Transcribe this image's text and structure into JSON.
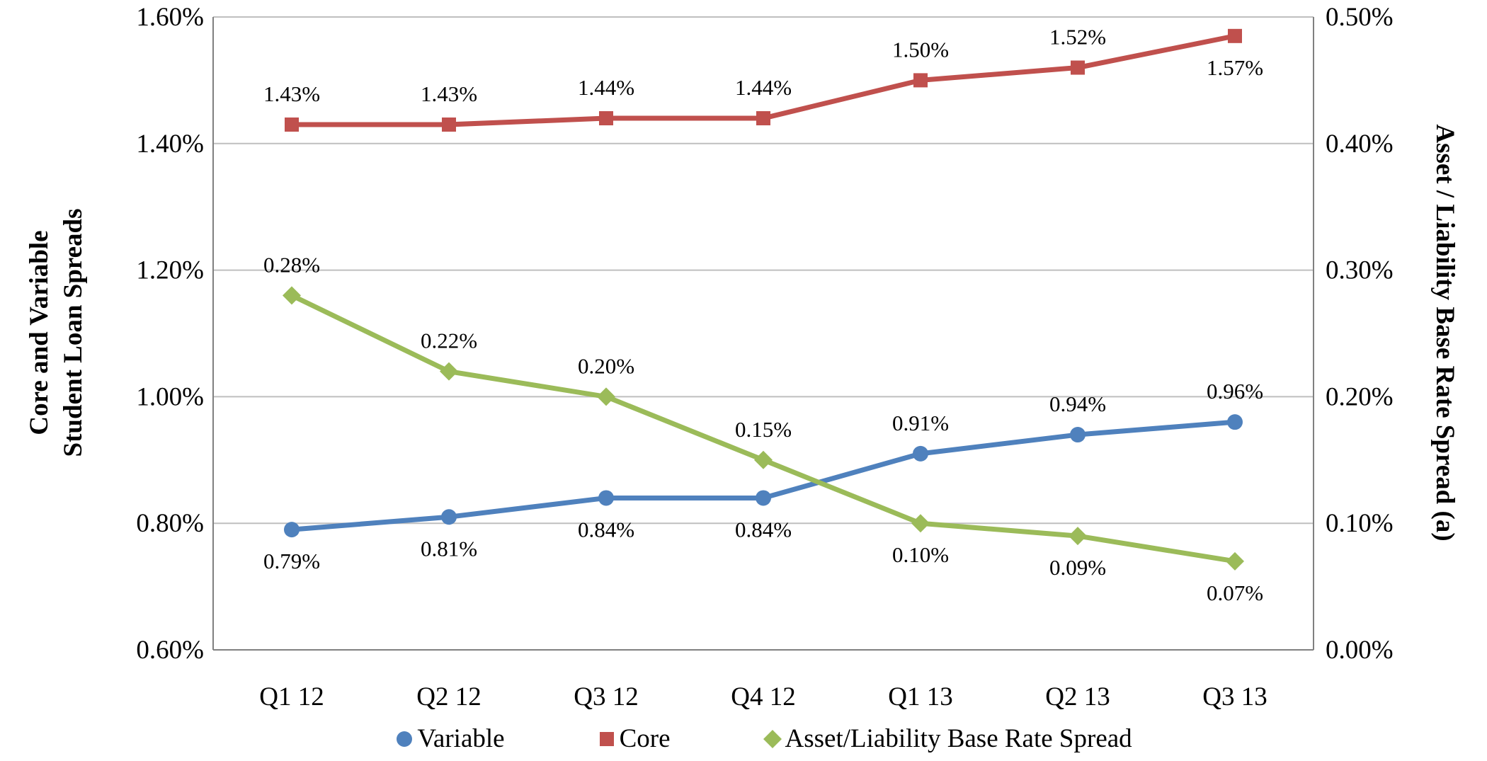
{
  "chart_data": {
    "type": "line",
    "categories": [
      "Q1 12",
      "Q2 12",
      "Q3 12",
      "Q4 12",
      "Q1 13",
      "Q2 13",
      "Q3 13"
    ],
    "series": [
      {
        "name": "Variable",
        "axis": "left",
        "marker": "circle",
        "color": "#4F81BD",
        "values": [
          0.79,
          0.81,
          0.84,
          0.84,
          0.91,
          0.94,
          0.96
        ],
        "labels": [
          "0.79%",
          "0.81%",
          "0.84%",
          "0.84%",
          "0.91%",
          "0.94%",
          "0.96%"
        ],
        "label_positions": [
          "below",
          "below",
          "below",
          "below",
          "above",
          "above",
          "above"
        ]
      },
      {
        "name": "Core",
        "axis": "left",
        "marker": "square",
        "color": "#C0504D",
        "values": [
          1.43,
          1.43,
          1.44,
          1.44,
          1.5,
          1.52,
          1.57
        ],
        "labels": [
          "1.43%",
          "1.43%",
          "1.44%",
          "1.44%",
          "1.50%",
          "1.52%",
          "1.57%"
        ],
        "label_positions": [
          "above",
          "above",
          "above",
          "above",
          "above",
          "above",
          "below"
        ]
      },
      {
        "name": "Asset/Liability Base Rate Spread",
        "axis": "right",
        "marker": "diamond",
        "color": "#9BBB59",
        "values": [
          0.28,
          0.22,
          0.2,
          0.15,
          0.1,
          0.09,
          0.07
        ],
        "labels": [
          "0.28%",
          "0.22%",
          "0.20%",
          "0.15%",
          "0.10%",
          "0.09%",
          "0.07%"
        ],
        "label_positions": [
          "above",
          "above",
          "above",
          "above",
          "below",
          "below",
          "below"
        ]
      }
    ],
    "left_axis": {
      "title_line1": "Core and Variable",
      "title_line2": "Student Loan Spreads",
      "min": 0.6,
      "max": 1.6,
      "tick_values": [
        1.6,
        1.4,
        1.2,
        1.0,
        0.8,
        0.6
      ],
      "tick_labels": [
        "1.60%",
        "1.40%",
        "1.20%",
        "1.00%",
        "0.80%",
        "0.60%"
      ]
    },
    "right_axis": {
      "title": "Asset / Liability Base Rate Spread (a)",
      "min": 0.0,
      "max": 0.5,
      "tick_values": [
        0.5,
        0.4,
        0.3,
        0.2,
        0.1,
        0.0
      ],
      "tick_labels": [
        "0.50%",
        "0.40%",
        "0.30%",
        "0.20%",
        "0.10%",
        "0.00%"
      ]
    },
    "legend": [
      {
        "label": "Variable",
        "color": "#4F81BD",
        "marker": "circle"
      },
      {
        "label": "Core",
        "color": "#C0504D",
        "marker": "square"
      },
      {
        "label": "Asset/Liability Base Rate Spread",
        "color": "#9BBB59",
        "marker": "diamond"
      }
    ],
    "grid": true,
    "gridline_color": "#BFBFBF",
    "axis_line_color": "#808080",
    "legend_position": "bottom"
  }
}
